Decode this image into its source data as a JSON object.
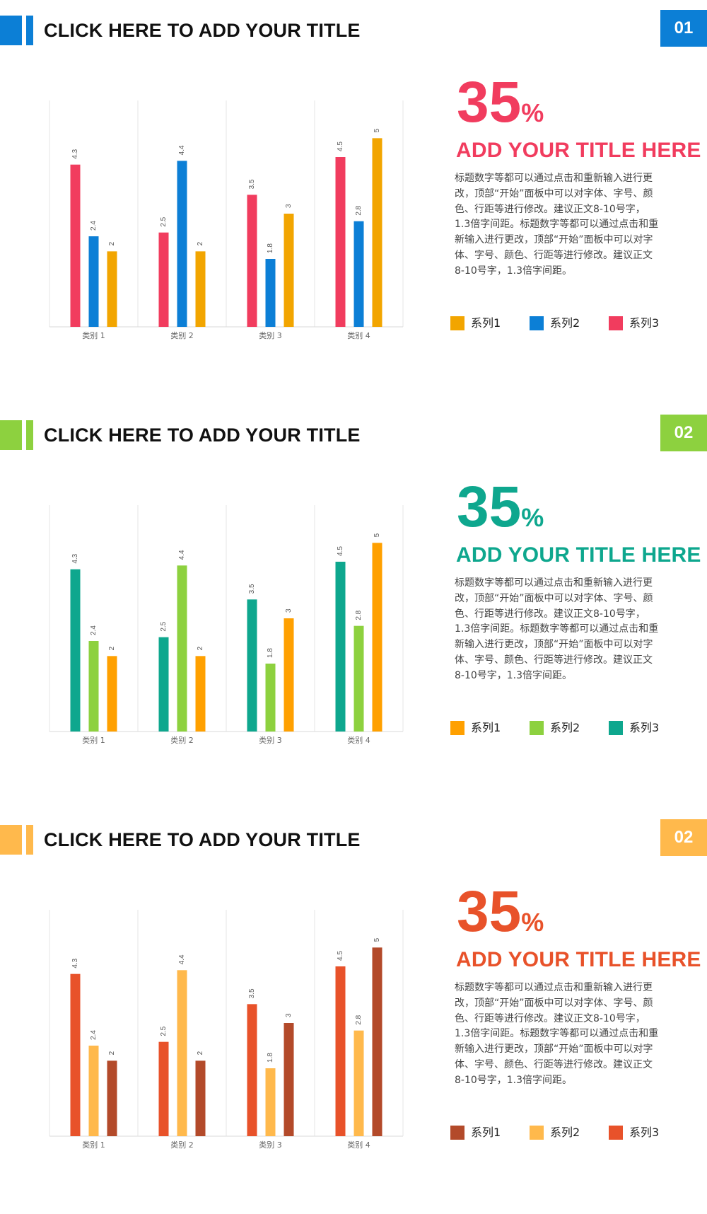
{
  "slides": [
    {
      "title": "CLICK HERE TO ADD YOUR TITLE",
      "number": "01",
      "big_number": "35",
      "big_unit": "%",
      "subtitle": "ADD YOUR TITLE HERE",
      "body": "标题数字等都可以通过点击和重新输入进行更改，顶部“开始”面板中可以对字体、字号、颜色、行距等进行修改。建议正文8-10号字，1.3倍字间距。标题数字等都可以通过点击和重新输入进行更改，顶部“开始”面板中可以对字体、字号、颜色、行距等进行修改。建议正文8-10号字，1.3倍字间距。",
      "colors": {
        "accent_a": "#0C7FD6",
        "accent_b": "#0C7FD6",
        "badge": "#0C7FD6",
        "highlight": "#F13C5E"
      },
      "legend": [
        {
          "label": "系列1",
          "color": "#F2A500"
        },
        {
          "label": "系列2",
          "color": "#0C7FD6"
        },
        {
          "label": "系列3",
          "color": "#F13C5E"
        }
      ]
    },
    {
      "title": "CLICK HERE TO ADD YOUR TITLE",
      "number": "02",
      "big_number": "35",
      "big_unit": "%",
      "subtitle": "ADD YOUR TITLE HERE",
      "body": "标题数字等都可以通过点击和重新输入进行更改，顶部“开始”面板中可以对字体、字号、颜色、行距等进行修改。建议正文8-10号字，1.3倍字间距。标题数字等都可以通过点击和重新输入进行更改，顶部“开始”面板中可以对字体、字号、颜色、行距等进行修改。建议正文8-10号字，1.3倍字间距。",
      "colors": {
        "accent_a": "#8DD13F",
        "accent_b": "#8DD13F",
        "badge": "#8DD13F",
        "highlight": "#0EA78E"
      },
      "legend": [
        {
          "label": "系列1",
          "color": "#FFA000"
        },
        {
          "label": "系列2",
          "color": "#8DD13F"
        },
        {
          "label": "系列3",
          "color": "#0EA78E"
        }
      ]
    },
    {
      "title": "CLICK HERE TO ADD YOUR TITLE",
      "number": "02",
      "big_number": "35",
      "big_unit": "%",
      "subtitle": "ADD YOUR TITLE HERE",
      "body": "标题数字等都可以通过点击和重新输入进行更改，顶部“开始”面板中可以对字体、字号、颜色、行距等进行修改。建议正文8-10号字，1.3倍字间距。标题数字等都可以通过点击和重新输入进行更改，顶部“开始”面板中可以对字体、字号、颜色、行距等进行修改。建议正文8-10号字，1.3倍字间距。",
      "colors": {
        "accent_a": "#FFB94C",
        "accent_b": "#FFB94C",
        "badge": "#FFB94C",
        "highlight": "#E8522A"
      },
      "legend": [
        {
          "label": "系列1",
          "color": "#B34A2A"
        },
        {
          "label": "系列2",
          "color": "#FFB94C"
        },
        {
          "label": "系列3",
          "color": "#E8522A"
        }
      ]
    }
  ],
  "chart_data": [
    {
      "type": "bar",
      "categories": [
        "类别 1",
        "类别 2",
        "类别 3",
        "类别 4"
      ],
      "series": [
        {
          "name": "系列3",
          "values": [
            4.3,
            2.5,
            3.5,
            4.5
          ],
          "color": "#F13C5E"
        },
        {
          "name": "系列2",
          "values": [
            2.4,
            4.4,
            1.8,
            2.8
          ],
          "color": "#0C7FD6"
        },
        {
          "name": "系列1",
          "values": [
            2,
            2,
            3,
            5
          ],
          "color": "#F2A500"
        }
      ],
      "ylim": [
        0,
        6
      ],
      "grid": "vertical category separators"
    },
    {
      "type": "bar",
      "categories": [
        "类别 1",
        "类别 2",
        "类别 3",
        "类别 4"
      ],
      "series": [
        {
          "name": "系列3",
          "values": [
            4.3,
            2.5,
            3.5,
            4.5
          ],
          "color": "#0EA78E"
        },
        {
          "name": "系列2",
          "values": [
            2.4,
            4.4,
            1.8,
            2.8
          ],
          "color": "#8DD13F"
        },
        {
          "name": "系列1",
          "values": [
            2,
            2,
            3,
            5
          ],
          "color": "#FFA000"
        }
      ],
      "ylim": [
        0,
        6
      ],
      "grid": "vertical category separators"
    },
    {
      "type": "bar",
      "categories": [
        "类别 1",
        "类别 2",
        "类别 3",
        "类别 4"
      ],
      "series": [
        {
          "name": "系列3",
          "values": [
            4.3,
            2.5,
            3.5,
            4.5
          ],
          "color": "#E8522A"
        },
        {
          "name": "系列2",
          "values": [
            2.4,
            4.4,
            1.8,
            2.8
          ],
          "color": "#FFB94C"
        },
        {
          "name": "系列1",
          "values": [
            2,
            2,
            3,
            5
          ],
          "color": "#B34A2A"
        }
      ],
      "ylim": [
        0,
        6
      ],
      "grid": "vertical category separators"
    }
  ]
}
